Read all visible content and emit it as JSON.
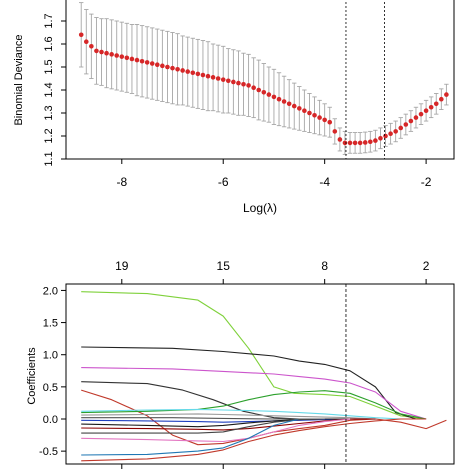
{
  "chart_data": [
    {
      "type": "scatter",
      "title": "",
      "xlabel": "Log(λ)",
      "ylabel": "Binomial Deviance",
      "xlim": [
        -9.1,
        -1.45
      ],
      "ylim": [
        1.1,
        1.8
      ],
      "x_ticks": [
        -8,
        -6,
        -4,
        -2
      ],
      "x_tick_labels": [
        "-8",
        "-6",
        "-4",
        "-2"
      ],
      "y_ticks": [
        1.1,
        1.2,
        1.3,
        1.4,
        1.5,
        1.6,
        1.7
      ],
      "y_tick_labels": [
        "1.1",
        "1.2",
        "1.3",
        "1.4",
        "1.5",
        "1.6",
        "1.7"
      ],
      "point_color": "#d62728",
      "errorbar_color": "#a6a6a6",
      "vlines": [
        -3.58,
        -2.82
      ],
      "series": [
        {
          "x": [
            -8.8,
            -8.7,
            -8.6,
            -8.5,
            -8.4,
            -8.3,
            -8.2,
            -8.1,
            -8.0,
            -7.9,
            -7.8,
            -7.7,
            -7.6,
            -7.5,
            -7.4,
            -7.3,
            -7.2,
            -7.1,
            -7.0,
            -6.9,
            -6.8,
            -6.7,
            -6.6,
            -6.5,
            -6.4,
            -6.3,
            -6.2,
            -6.1,
            -6.0,
            -5.9,
            -5.8,
            -5.7,
            -5.6,
            -5.5,
            -5.4,
            -5.3,
            -5.2,
            -5.1,
            -5.0,
            -4.9,
            -4.8,
            -4.7,
            -4.6,
            -4.5,
            -4.4,
            -4.3,
            -4.2,
            -4.1,
            -4.0,
            -3.9,
            -3.8,
            -3.7,
            -3.6,
            -3.5,
            -3.4,
            -3.3,
            -3.2,
            -3.1,
            -3.0,
            -2.9,
            -2.8,
            -2.7,
            -2.6,
            -2.5,
            -2.4,
            -2.3,
            -2.2,
            -2.1,
            -2.0,
            -1.9,
            -1.8,
            -1.7,
            -1.6
          ],
          "y": [
            1.64,
            1.61,
            1.59,
            1.57,
            1.565,
            1.56,
            1.555,
            1.55,
            1.545,
            1.54,
            1.535,
            1.53,
            1.525,
            1.52,
            1.515,
            1.51,
            1.505,
            1.5,
            1.495,
            1.49,
            1.485,
            1.48,
            1.475,
            1.47,
            1.465,
            1.46,
            1.455,
            1.45,
            1.445,
            1.44,
            1.435,
            1.43,
            1.425,
            1.42,
            1.41,
            1.4,
            1.39,
            1.38,
            1.37,
            1.36,
            1.35,
            1.34,
            1.33,
            1.32,
            1.31,
            1.3,
            1.29,
            1.28,
            1.27,
            1.26,
            1.22,
            1.185,
            1.17,
            1.17,
            1.17,
            1.17,
            1.172,
            1.175,
            1.18,
            1.19,
            1.2,
            1.21,
            1.22,
            1.235,
            1.25,
            1.265,
            1.28,
            1.295,
            1.31,
            1.325,
            1.34,
            1.36,
            1.38
          ],
          "err": [
            0.14,
            0.14,
            0.14,
            0.145,
            0.145,
            0.15,
            0.15,
            0.15,
            0.15,
            0.15,
            0.15,
            0.155,
            0.155,
            0.155,
            0.155,
            0.155,
            0.155,
            0.155,
            0.155,
            0.155,
            0.15,
            0.15,
            0.15,
            0.15,
            0.15,
            0.15,
            0.145,
            0.145,
            0.145,
            0.14,
            0.14,
            0.14,
            0.135,
            0.135,
            0.13,
            0.13,
            0.125,
            0.12,
            0.12,
            0.115,
            0.11,
            0.105,
            0.1,
            0.095,
            0.09,
            0.085,
            0.08,
            0.075,
            0.07,
            0.065,
            0.055,
            0.05,
            0.05,
            0.045,
            0.045,
            0.045,
            0.045,
            0.045,
            0.045,
            0.045,
            0.045,
            0.045,
            0.045,
            0.045,
            0.045,
            0.045,
            0.045,
            0.045,
            0.045,
            0.045,
            0.045,
            0.045,
            0.045
          ]
        }
      ]
    },
    {
      "type": "line",
      "title": "",
      "xlabel": "",
      "ylabel": "Coefficients",
      "xlim": [
        -9.1,
        -1.45
      ],
      "ylim": [
        -0.7,
        2.1
      ],
      "y_ticks": [
        -0.5,
        0.0,
        0.5,
        1.0,
        1.5,
        2.0
      ],
      "y_tick_labels": [
        "-0.5",
        "0.0",
        "0.5",
        "1.0",
        "1.5",
        "2.0"
      ],
      "top_ticks": [
        -8,
        -6,
        -4,
        -2
      ],
      "top_tick_labels": [
        "19",
        "15",
        "8",
        "2"
      ],
      "vlines": [
        -3.58
      ],
      "series": [
        {
          "color": "#7fd13b",
          "x": [
            -8.8,
            -7.5,
            -6.5,
            -6.0,
            -5.5,
            -5.0,
            -4.6,
            -4.0,
            -3.5,
            -3.0,
            -2.5,
            -2.0
          ],
          "y": [
            1.98,
            1.95,
            1.85,
            1.6,
            1.1,
            0.5,
            0.4,
            0.38,
            0.35,
            0.2,
            0.05,
            0.0
          ]
        },
        {
          "color": "#222222",
          "x": [
            -8.8,
            -7.0,
            -6.0,
            -5.0,
            -4.5,
            -4.0,
            -3.5,
            -3.0,
            -2.6,
            -2.2,
            -2.0
          ],
          "y": [
            1.12,
            1.1,
            1.05,
            0.98,
            0.9,
            0.85,
            0.75,
            0.5,
            0.1,
            0.0,
            0.0
          ]
        },
        {
          "color": "#cc55cc",
          "x": [
            -8.8,
            -7.0,
            -6.0,
            -5.0,
            -4.5,
            -4.0,
            -3.5,
            -3.0,
            -2.5,
            -2.0
          ],
          "y": [
            0.8,
            0.78,
            0.74,
            0.7,
            0.66,
            0.62,
            0.56,
            0.42,
            0.12,
            0.0
          ]
        },
        {
          "color": "#333333",
          "x": [
            -8.8,
            -7.5,
            -6.8,
            -6.2,
            -5.6,
            -5.0,
            -4.5,
            -4.0,
            -3.5,
            -3.0
          ],
          "y": [
            0.58,
            0.55,
            0.45,
            0.3,
            0.12,
            0.02,
            0.0,
            0.0,
            0.0,
            0.0
          ]
        },
        {
          "color": "#c0392b",
          "x": [
            -8.8,
            -8.2,
            -7.5,
            -7.0,
            -6.5,
            -6.0,
            -5.5,
            -5.0,
            -4.5,
            -4.0,
            -3.5,
            -3.0,
            -2.5,
            -2.0,
            -1.6
          ],
          "y": [
            0.45,
            0.3,
            0.05,
            -0.25,
            -0.4,
            -0.38,
            -0.3,
            -0.2,
            -0.15,
            -0.1,
            -0.02,
            0.0,
            -0.05,
            -0.15,
            -0.02
          ]
        },
        {
          "color": "#2ca02c",
          "x": [
            -8.8,
            -7.5,
            -6.5,
            -6.0,
            -5.5,
            -5.0,
            -4.5,
            -4.0,
            -3.5,
            -3.0,
            -2.5,
            -2.0
          ],
          "y": [
            0.1,
            0.12,
            0.15,
            0.2,
            0.3,
            0.38,
            0.42,
            0.44,
            0.4,
            0.25,
            0.08,
            0.0
          ]
        },
        {
          "color": "#66d9e8",
          "x": [
            -8.8,
            -7.5,
            -6.5,
            -6.0,
            -5.5,
            -5.0,
            -4.5,
            -4.0,
            -3.5,
            -3.0,
            -2.5
          ],
          "y": [
            0.12,
            0.14,
            0.15,
            0.14,
            0.13,
            0.12,
            0.1,
            0.08,
            0.05,
            0.02,
            0.0
          ]
        },
        {
          "color": "#999999",
          "x": [
            -8.8,
            -7.5,
            -6.5,
            -6.0,
            -5.5,
            -5.0,
            -4.5,
            -4.0,
            -3.5,
            -3.0
          ],
          "y": [
            0.06,
            0.07,
            0.08,
            0.07,
            0.06,
            0.05,
            0.04,
            0.03,
            0.02,
            0.0
          ]
        },
        {
          "color": "#1f3fbf",
          "x": [
            -8.8,
            -7.5,
            -6.5,
            -6.0,
            -5.5,
            -5.0,
            -4.5,
            -4.0,
            -3.5,
            -3.0
          ],
          "y": [
            -0.02,
            -0.03,
            -0.04,
            -0.05,
            -0.04,
            -0.03,
            -0.02,
            -0.01,
            0.0,
            0.0
          ]
        },
        {
          "color": "#1a1a1a",
          "x": [
            -8.8,
            -7.5,
            -6.5,
            -6.0,
            -5.5,
            -5.0,
            -4.5,
            -4.0,
            -3.5
          ],
          "y": [
            -0.08,
            -0.1,
            -0.12,
            -0.1,
            -0.06,
            -0.03,
            -0.01,
            0.0,
            0.0
          ]
        },
        {
          "color": "#8b0000",
          "x": [
            -8.8,
            -7.5,
            -6.5,
            -6.0,
            -5.5,
            -5.0,
            -4.5,
            -4.0,
            -3.5,
            -3.0
          ],
          "y": [
            -0.14,
            -0.15,
            -0.16,
            -0.17,
            -0.15,
            -0.11,
            -0.07,
            -0.03,
            0.0,
            0.0
          ]
        },
        {
          "color": "#444444",
          "x": [
            -8.8,
            -7.5,
            -6.5,
            -6.0,
            -5.5,
            -5.0,
            -4.5,
            -4.0
          ],
          "y": [
            -0.22,
            -0.22,
            -0.22,
            -0.2,
            -0.12,
            -0.05,
            -0.01,
            0.0
          ]
        },
        {
          "color": "#e377c2",
          "x": [
            -8.8,
            -7.5,
            -6.5,
            -6.0,
            -5.5,
            -5.0,
            -4.5,
            -4.0,
            -3.5
          ],
          "y": [
            -0.3,
            -0.32,
            -0.34,
            -0.35,
            -0.3,
            -0.2,
            -0.1,
            -0.04,
            0.0
          ]
        },
        {
          "color": "#1f77b4",
          "x": [
            -8.8,
            -7.5,
            -6.5,
            -6.0,
            -5.5,
            -5.0,
            -4.5
          ],
          "y": [
            -0.56,
            -0.55,
            -0.5,
            -0.45,
            -0.3,
            -0.1,
            0.0
          ]
        },
        {
          "color": "#c0392b",
          "x": [
            -8.8,
            -7.5,
            -6.5,
            -6.0,
            -5.5,
            -5.0,
            -4.5,
            -4.0,
            -3.5,
            -3.0,
            -2.5,
            -2.0
          ],
          "y": [
            -0.65,
            -0.62,
            -0.55,
            -0.48,
            -0.35,
            -0.25,
            -0.18,
            -0.12,
            -0.07,
            -0.03,
            0.0,
            0.0
          ]
        },
        {
          "color": "#555555",
          "x": [
            -8.8,
            -7.0,
            -6.0,
            -5.0,
            -4.0
          ],
          "y": [
            0.02,
            0.02,
            0.01,
            0.0,
            0.0
          ]
        }
      ]
    }
  ]
}
